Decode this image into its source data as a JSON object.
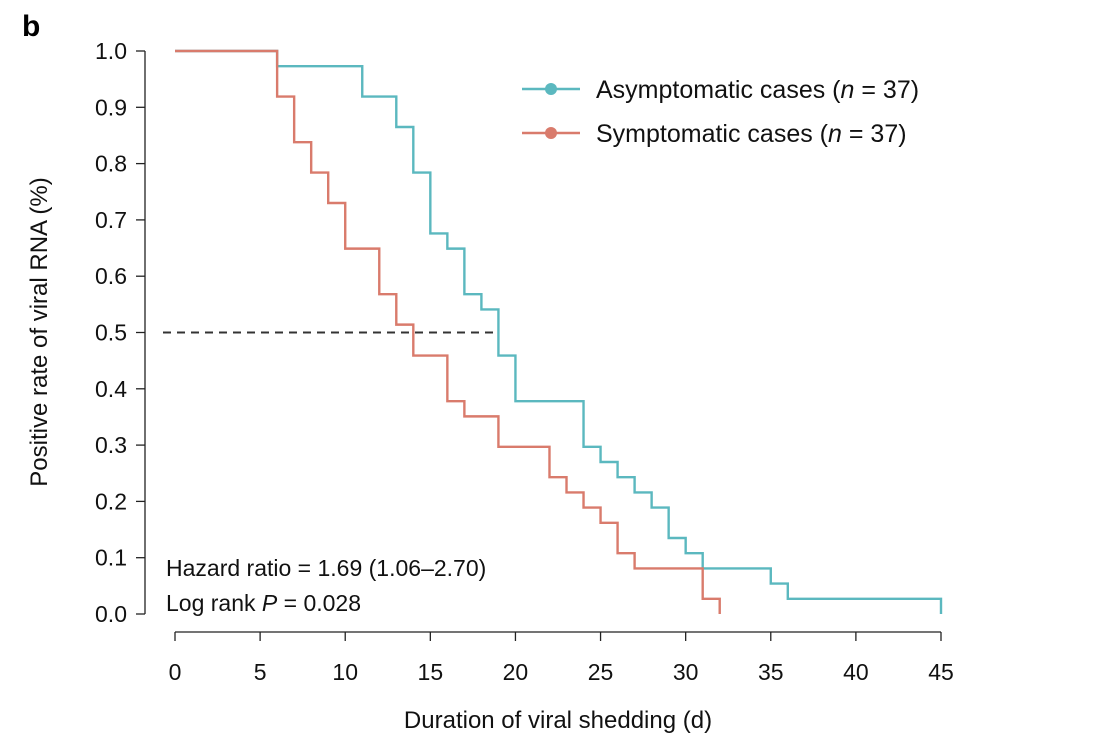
{
  "panel_label": "b",
  "chart_data": {
    "type": "line",
    "title": "",
    "xlabel": "Duration of viral shedding (d)",
    "ylabel": "Positive rate of viral RNA (%)",
    "xlim": [
      0,
      45
    ],
    "ylim": [
      0,
      1
    ],
    "x_ticks": [
      0,
      5,
      10,
      15,
      20,
      25,
      30,
      35,
      40,
      45
    ],
    "y_ticks": [
      0.0,
      0.1,
      0.2,
      0.3,
      0.4,
      0.5,
      0.6,
      0.7,
      0.8,
      0.9,
      1.0
    ],
    "x_tick_labels": [
      "0",
      "5",
      "10",
      "15",
      "20",
      "25",
      "30",
      "35",
      "40",
      "45"
    ],
    "y_tick_labels": [
      "0.0",
      "0.1",
      "0.2",
      "0.3",
      "0.4",
      "0.5",
      "0.6",
      "0.7",
      "0.8",
      "0.9",
      "1.0"
    ],
    "legend_position": "top-right",
    "grid": false,
    "series": [
      {
        "name_prefix": "Asymptomatic cases (",
        "name_italic": "n",
        "name_suffix": " = 37)",
        "color": "#5bb8bf",
        "step": true,
        "x": [
          0,
          6,
          11,
          13,
          14,
          15,
          16,
          17,
          18,
          19,
          20,
          24,
          25,
          26,
          27,
          28,
          29,
          30,
          31,
          35,
          36,
          45
        ],
        "y": [
          1.0,
          0.973,
          0.919,
          0.865,
          0.784,
          0.676,
          0.649,
          0.568,
          0.541,
          0.459,
          0.378,
          0.297,
          0.27,
          0.243,
          0.216,
          0.189,
          0.135,
          0.108,
          0.081,
          0.054,
          0.027,
          0.0
        ]
      },
      {
        "name_prefix": "Symptomatic cases (",
        "name_italic": "n",
        "name_suffix": " = 37)",
        "color": "#d97b6c",
        "step": true,
        "x": [
          0,
          6,
          7,
          8,
          9,
          10,
          12,
          13,
          14,
          16,
          17,
          19,
          22,
          23,
          24,
          25,
          26,
          27,
          31,
          32
        ],
        "y": [
          1.0,
          0.919,
          0.838,
          0.784,
          0.73,
          0.649,
          0.568,
          0.514,
          0.459,
          0.378,
          0.351,
          0.297,
          0.243,
          0.216,
          0.189,
          0.162,
          0.108,
          0.081,
          0.027,
          0.0
        ]
      }
    ],
    "reference_line": {
      "y": 0.5,
      "x_start": 0,
      "x_end": 19,
      "style": "dashed",
      "color": "#333333"
    },
    "annotations": [
      {
        "prefix": "Hazard ratio = 1.69 (1.06–2.70)",
        "italic": "",
        "suffix": ""
      },
      {
        "prefix": "Log rank ",
        "italic": "P",
        "suffix": " = 0.028"
      }
    ]
  }
}
